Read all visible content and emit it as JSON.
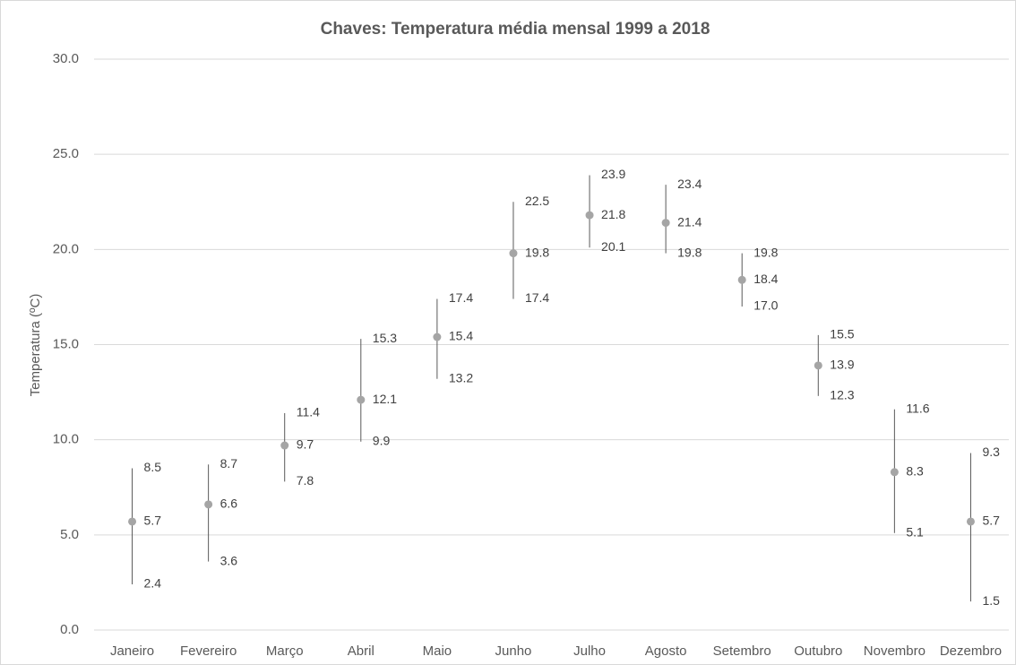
{
  "chart_data": {
    "type": "high-low-mean",
    "title": "Chaves: Temperatura média mensal 1999 a 2018",
    "y_label": "Temperatura (ºC)",
    "categories": [
      "Janeiro",
      "Fevereiro",
      "Março",
      "Abril",
      "Maio",
      "Junho",
      "Julho",
      "Agosto",
      "Setembro",
      "Outubro",
      "Novembro",
      "Dezembro"
    ],
    "series": [
      {
        "color": "#595959",
        "values": [
          8.5,
          8.7,
          11.4,
          15.3,
          17.4,
          22.5,
          23.9,
          23.4,
          19.8,
          15.5,
          11.6,
          9.3
        ],
        "value_labels": [
          "8.5",
          "8.7",
          "11.4",
          "15.3",
          "17.4",
          "22.5",
          "23.9",
          "23.4",
          "19.8",
          "15.5",
          "11.6",
          "9.3"
        ]
      },
      {
        "color": "#a5a5a5",
        "values": [
          5.7,
          6.6,
          9.7,
          12.1,
          15.4,
          19.8,
          21.8,
          21.4,
          18.4,
          13.9,
          8.3,
          5.7
        ],
        "value_labels": [
          "5.7",
          "6.6",
          "9.7",
          "12.1",
          "15.4",
          "19.8",
          "21.8",
          "21.4",
          "18.4",
          "13.9",
          "8.3",
          "5.7"
        ]
      },
      {
        "color": "#595959",
        "values": [
          2.4,
          3.6,
          7.8,
          9.9,
          13.2,
          17.4,
          20.1,
          19.8,
          17.0,
          12.3,
          5.1,
          1.5
        ],
        "value_labels": [
          "2.4",
          "3.6",
          "7.8",
          "9.9",
          "13.2",
          "17.4",
          "20.1",
          "19.8",
          "17.0",
          "12.3",
          "5.1",
          "1.5"
        ]
      }
    ],
    "ylim": [
      0,
      30
    ],
    "yticks": [
      {
        "value": 0,
        "label": "0.0"
      },
      {
        "value": 5,
        "label": "5.0"
      },
      {
        "value": 10,
        "label": "10.0"
      },
      {
        "value": 15,
        "label": "15.0"
      },
      {
        "value": 20,
        "label": "20.0"
      },
      {
        "value": 25,
        "label": "25.0"
      },
      {
        "value": 30,
        "label": "30.0"
      }
    ],
    "grid": true
  }
}
